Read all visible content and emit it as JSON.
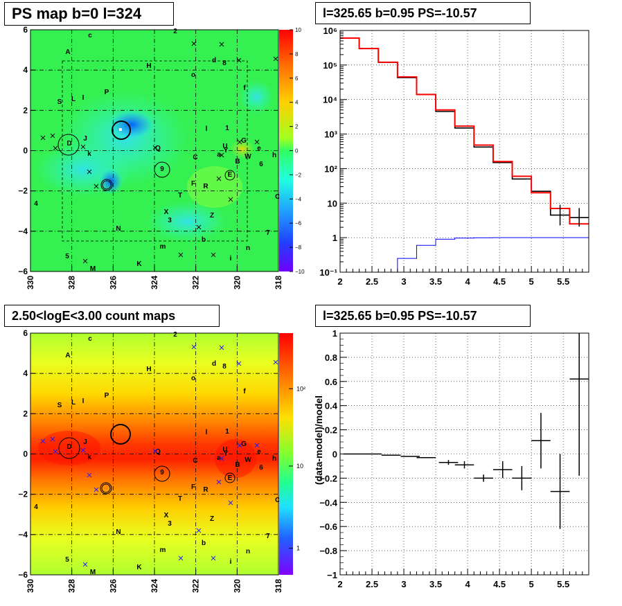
{
  "panels": {
    "ps_map_title": "PS map b=0 l=324",
    "count_map_title": "2.50<logE<3.00 count maps",
    "spectrum_title": "l=325.65 b=0.95 PS=-10.57",
    "residual_title": "l=325.65 b=0.95 PS=-10.57"
  },
  "chart_data": [
    {
      "type": "heatmap",
      "title": "PS map b=0 l=324",
      "x_ticks": [
        "330",
        "328",
        "326",
        "324",
        "322",
        "320",
        "318"
      ],
      "y_ticks": [
        "6",
        "4",
        "2",
        "0",
        "−2",
        "−4",
        "−6"
      ],
      "xlim": [
        330,
        318
      ],
      "ylim": [
        -6,
        6
      ],
      "colorbar_ticks": [
        "10",
        "8",
        "6",
        "4",
        "2",
        "0",
        "−2",
        "−4",
        "−6",
        "−8",
        "−10"
      ],
      "colorbar_range": [
        -10,
        10
      ],
      "source_labels": [
        "A",
        "c",
        "2",
        "H",
        "d",
        "8",
        "o",
        "P",
        "f",
        "S",
        "L",
        "I",
        "l",
        "1",
        "G",
        "D",
        "J",
        "U",
        "Y",
        "e",
        "h",
        "k",
        "Q",
        "C",
        "a",
        "B",
        "W",
        "6",
        "9",
        "E",
        "F",
        "R",
        "T",
        "O",
        "4",
        "X",
        "3",
        "Z",
        "N",
        "b",
        "7",
        "m",
        "n",
        "5",
        "M",
        "K",
        "i"
      ]
    },
    {
      "type": "heatmap",
      "title": "2.50<logE<3.00 count maps",
      "x_ticks": [
        "330",
        "328",
        "326",
        "324",
        "322",
        "320",
        "318"
      ],
      "y_ticks": [
        "6",
        "4",
        "2",
        "0",
        "−2",
        "−4",
        "−6"
      ],
      "xlim": [
        330,
        318
      ],
      "ylim": [
        -6,
        6
      ],
      "colorbar_ticks": [
        "10²",
        "10",
        "1"
      ],
      "colorbar_scale": "log"
    },
    {
      "type": "line",
      "title": "l=325.65 b=0.95 PS=-10.57",
      "y_scale": "log",
      "xlim": [
        2,
        5.9
      ],
      "ylim": [
        0.1,
        1000000
      ],
      "x_ticks": [
        "2",
        "2.5",
        "3",
        "3.5",
        "4",
        "4.5",
        "5",
        "5.5"
      ],
      "y_ticks": [
        "10⁻¹",
        "1",
        "10",
        "10²",
        "10³",
        "10⁴",
        "10⁵",
        "10⁶"
      ],
      "grid": true,
      "bin_edges": [
        2.0,
        2.3,
        2.6,
        2.9,
        3.2,
        3.5,
        3.8,
        4.1,
        4.4,
        4.7,
        5.0,
        5.3,
        5.6,
        5.9
      ],
      "series": [
        {
          "values": [
            600000,
            300000,
            120000,
            43000,
            14000,
            4500,
            1500,
            420,
            150,
            50,
            22,
            4.5,
            3.8
          ],
          "color": "#000000"
        },
        {
          "values": [
            600000,
            300000,
            120000,
            45000,
            14000,
            5000,
            1700,
            480,
            160,
            60,
            20,
            7,
            2.5
          ],
          "color": "#ff0000"
        },
        {
          "values": [
            0.05,
            0.05,
            0.05,
            0.25,
            0.6,
            0.9,
            0.97,
            0.99,
            1.0,
            1.0,
            1.0,
            1.0,
            1.0
          ],
          "color": "#0000ff"
        }
      ]
    },
    {
      "type": "scatter",
      "title": "l=325.65 b=0.95 PS=-10.57",
      "ylabel": "(data-model)/model",
      "xlim": [
        2,
        5.9
      ],
      "ylim": [
        -1,
        1
      ],
      "x_ticks": [
        "2",
        "2.5",
        "3",
        "3.5",
        "4",
        "4.5",
        "5",
        "5.5"
      ],
      "y_ticks": [
        "1",
        "0.8",
        "0.6",
        "0.4",
        "0.2",
        "0",
        "−0.2",
        "−0.4",
        "−0.6",
        "−0.8",
        "−1"
      ],
      "grid": true,
      "x": [
        2.2,
        2.5,
        2.8,
        3.1,
        3.35,
        3.7,
        3.95,
        4.25,
        4.55,
        4.85,
        5.15,
        5.45,
        5.75
      ],
      "y": [
        0.0,
        0.0,
        -0.01,
        -0.02,
        -0.03,
        -0.07,
        -0.09,
        -0.2,
        -0.13,
        -0.2,
        0.11,
        -0.31,
        0.62
      ],
      "yerr": [
        0.005,
        0.005,
        0.008,
        0.01,
        0.01,
        0.02,
        0.03,
        0.03,
        0.07,
        0.1,
        0.23,
        0.31,
        0.8
      ]
    }
  ]
}
